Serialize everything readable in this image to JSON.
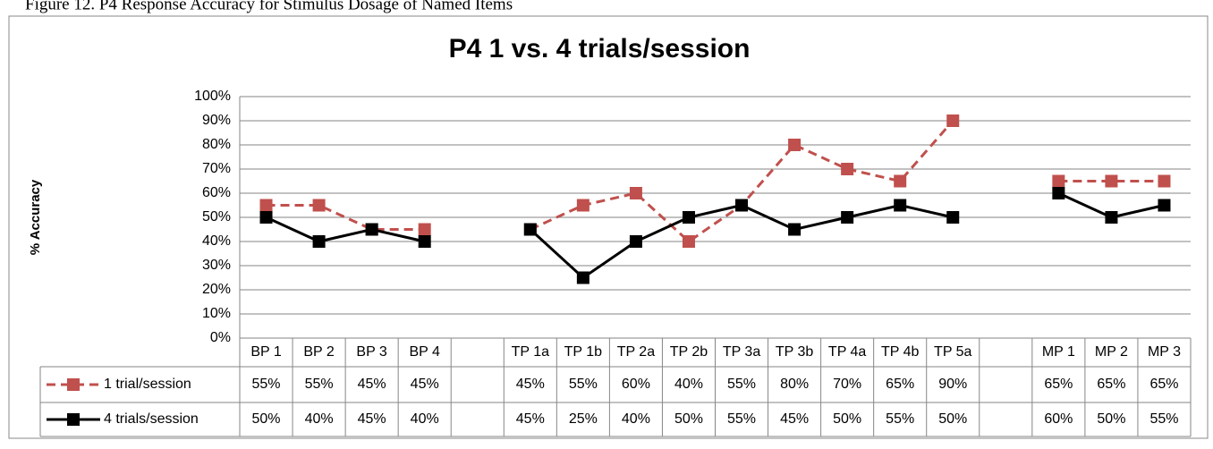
{
  "chart_data": {
    "type": "line",
    "caption": "Figure 12. P4 Response Accuracy for Stimulus Dosage of Named Items",
    "title": "P4 1 vs. 4 trials/session",
    "y_label": "% Accuracy",
    "categories": [
      "BP 1",
      "BP 2",
      "BP 3",
      "BP 4",
      null,
      "TP 1a",
      "TP 1b",
      "TP 2a",
      "TP 2b",
      "TP 3a",
      "TP 3b",
      "TP 4a",
      "TP 4b",
      "TP 5a",
      null,
      "MP 1",
      "MP 2",
      "MP 3"
    ],
    "series": [
      {
        "name": "1 trial/session",
        "color": "#c0504d",
        "dashed": true,
        "values": [
          55,
          55,
          45,
          45,
          null,
          45,
          55,
          60,
          40,
          55,
          80,
          70,
          65,
          90,
          null,
          65,
          65,
          65
        ],
        "value_labels": [
          "55%",
          "55%",
          "45%",
          "45%",
          null,
          "45%",
          "55%",
          "60%",
          "40%",
          "55%",
          "80%",
          "70%",
          "65%",
          "90%",
          null,
          "65%",
          "65%",
          "65%"
        ]
      },
      {
        "name": "4 trials/session",
        "color": "#000000",
        "dashed": false,
        "values": [
          50,
          40,
          45,
          40,
          null,
          45,
          25,
          40,
          50,
          55,
          45,
          50,
          55,
          50,
          null,
          60,
          50,
          55
        ],
        "value_labels": [
          "50%",
          "40%",
          "45%",
          "40%",
          null,
          "45%",
          "25%",
          "40%",
          "50%",
          "55%",
          "45%",
          "50%",
          "55%",
          "50%",
          null,
          "60%",
          "50%",
          "55%"
        ]
      }
    ],
    "ylim": [
      0,
      100
    ],
    "yticks": [
      {
        "value": 0,
        "label": "0%"
      },
      {
        "value": 10,
        "label": "10%"
      },
      {
        "value": 20,
        "label": "20%"
      },
      {
        "value": 30,
        "label": "30%"
      },
      {
        "value": 40,
        "label": "40%"
      },
      {
        "value": 50,
        "label": "50%"
      },
      {
        "value": 60,
        "label": "60%"
      },
      {
        "value": 70,
        "label": "70%"
      },
      {
        "value": 80,
        "label": "80%"
      },
      {
        "value": 90,
        "label": "90%"
      },
      {
        "value": 100,
        "label": "100%"
      }
    ],
    "grid": true
  }
}
